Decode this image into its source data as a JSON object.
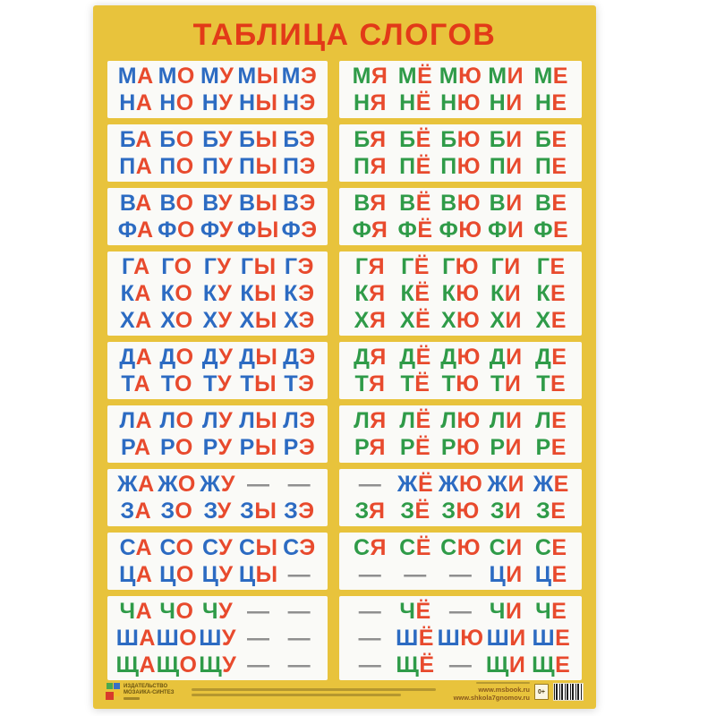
{
  "poster": {
    "title": "ТАБЛИЦА СЛОГОВ",
    "colors": {
      "background": "#E8C33C",
      "title_red": "#E23A18",
      "vowel_red": "#E84A2D",
      "hard_blue": "#2C6BC2",
      "soft_green": "#2F9B48",
      "dash_gray": "#8F8F8F",
      "card_white": "#FAFAF7"
    },
    "rows": [
      {
        "left": [
          {
            "k": "h",
            "cells": [
              "МА",
              "МО",
              "МУ",
              "МЫ",
              "МЭ"
            ]
          },
          {
            "k": "h",
            "cells": [
              "НА",
              "НО",
              "НУ",
              "НЫ",
              "НЭ"
            ]
          }
        ],
        "right": [
          {
            "k": "s",
            "cells": [
              "МЯ",
              "МЁ",
              "МЮ",
              "МИ",
              "МЕ"
            ]
          },
          {
            "k": "s",
            "cells": [
              "НЯ",
              "НЁ",
              "НЮ",
              "НИ",
              "НЕ"
            ]
          }
        ]
      },
      {
        "left": [
          {
            "k": "h",
            "cells": [
              "БА",
              "БО",
              "БУ",
              "БЫ",
              "БЭ"
            ]
          },
          {
            "k": "h",
            "cells": [
              "ПА",
              "ПО",
              "ПУ",
              "ПЫ",
              "ПЭ"
            ]
          }
        ],
        "right": [
          {
            "k": "s",
            "cells": [
              "БЯ",
              "БЁ",
              "БЮ",
              "БИ",
              "БЕ"
            ]
          },
          {
            "k": "s",
            "cells": [
              "ПЯ",
              "ПЁ",
              "ПЮ",
              "ПИ",
              "ПЕ"
            ]
          }
        ]
      },
      {
        "left": [
          {
            "k": "h",
            "cells": [
              "ВА",
              "ВО",
              "ВУ",
              "ВЫ",
              "ВЭ"
            ]
          },
          {
            "k": "h",
            "cells": [
              "ФА",
              "ФО",
              "ФУ",
              "ФЫ",
              "ФЭ"
            ]
          }
        ],
        "right": [
          {
            "k": "s",
            "cells": [
              "ВЯ",
              "ВЁ",
              "ВЮ",
              "ВИ",
              "ВЕ"
            ]
          },
          {
            "k": "s",
            "cells": [
              "ФЯ",
              "ФЁ",
              "ФЮ",
              "ФИ",
              "ФЕ"
            ]
          }
        ]
      },
      {
        "left": [
          {
            "k": "h",
            "cells": [
              "ГА",
              "ГО",
              "ГУ",
              "ГЫ",
              "ГЭ"
            ]
          },
          {
            "k": "h",
            "cells": [
              "КА",
              "КО",
              "КУ",
              "КЫ",
              "КЭ"
            ]
          },
          {
            "k": "h",
            "cells": [
              "ХА",
              "ХО",
              "ХУ",
              "ХЫ",
              "ХЭ"
            ]
          }
        ],
        "right": [
          {
            "k": "s",
            "cells": [
              "ГЯ",
              "ГЁ",
              "ГЮ",
              "ГИ",
              "ГЕ"
            ]
          },
          {
            "k": "s",
            "cells": [
              "КЯ",
              "КЁ",
              "КЮ",
              "КИ",
              "КЕ"
            ]
          },
          {
            "k": "s",
            "cells": [
              "ХЯ",
              "ХЁ",
              "ХЮ",
              "ХИ",
              "ХЕ"
            ]
          }
        ]
      },
      {
        "left": [
          {
            "k": "h",
            "cells": [
              "ДА",
              "ДО",
              "ДУ",
              "ДЫ",
              "ДЭ"
            ]
          },
          {
            "k": "h",
            "cells": [
              "ТА",
              "ТО",
              "ТУ",
              "ТЫ",
              "ТЭ"
            ]
          }
        ],
        "right": [
          {
            "k": "s",
            "cells": [
              "ДЯ",
              "ДЁ",
              "ДЮ",
              "ДИ",
              "ДЕ"
            ]
          },
          {
            "k": "s",
            "cells": [
              "ТЯ",
              "ТЁ",
              "ТЮ",
              "ТИ",
              "ТЕ"
            ]
          }
        ]
      },
      {
        "left": [
          {
            "k": "h",
            "cells": [
              "ЛА",
              "ЛО",
              "ЛУ",
              "ЛЫ",
              "ЛЭ"
            ]
          },
          {
            "k": "h",
            "cells": [
              "РА",
              "РО",
              "РУ",
              "РЫ",
              "РЭ"
            ]
          }
        ],
        "right": [
          {
            "k": "s",
            "cells": [
              "ЛЯ",
              "ЛЁ",
              "ЛЮ",
              "ЛИ",
              "ЛЕ"
            ]
          },
          {
            "k": "s",
            "cells": [
              "РЯ",
              "РЁ",
              "РЮ",
              "РИ",
              "РЕ"
            ]
          }
        ]
      },
      {
        "left": [
          {
            "k": "h",
            "cells": [
              "ЖА",
              "ЖО",
              "ЖУ",
              "—",
              "—"
            ]
          },
          {
            "k": "h",
            "cells": [
              "ЗА",
              "ЗО",
              "ЗУ",
              "ЗЫ",
              "ЗЭ"
            ]
          }
        ],
        "right": [
          {
            "k": "h",
            "cells": [
              "—",
              "ЖЁ",
              "ЖЮ",
              "ЖИ",
              "ЖЕ"
            ]
          },
          {
            "k": "s",
            "cells": [
              "ЗЯ",
              "ЗЁ",
              "ЗЮ",
              "ЗИ",
              "ЗЕ"
            ]
          }
        ]
      },
      {
        "left": [
          {
            "k": "h",
            "cells": [
              "СА",
              "СО",
              "СУ",
              "СЫ",
              "СЭ"
            ]
          },
          {
            "k": "h",
            "cells": [
              "ЦА",
              "ЦО",
              "ЦУ",
              "ЦЫ",
              "—"
            ]
          }
        ],
        "right": [
          {
            "k": "s",
            "cells": [
              "СЯ",
              "СЁ",
              "СЮ",
              "СИ",
              "СЕ"
            ]
          },
          {
            "k": "h",
            "cells": [
              "—",
              "—",
              "—",
              "ЦИ",
              "ЦЕ"
            ]
          }
        ]
      },
      {
        "left": [
          {
            "k": "s",
            "cells": [
              "ЧА",
              "ЧО",
              "ЧУ",
              "—",
              "—"
            ]
          },
          {
            "k": "h",
            "cells": [
              "ША",
              "ШО",
              "ШУ",
              "—",
              "—"
            ]
          },
          {
            "k": "s",
            "cells": [
              "ЩА",
              "ЩО",
              "ЩУ",
              "—",
              "—"
            ]
          }
        ],
        "right": [
          {
            "k": "s",
            "cells": [
              "—",
              "ЧЁ",
              "—",
              "ЧИ",
              "ЧЕ"
            ]
          },
          {
            "k": "h",
            "cells": [
              "—",
              "ШЁ",
              "ШЮ",
              "ШИ",
              "ШЕ"
            ]
          },
          {
            "k": "s",
            "cells": [
              "—",
              "ЩЁ",
              "—",
              "ЩИ",
              "ЩЕ"
            ]
          }
        ]
      }
    ],
    "footer": {
      "publisher_line1": "ИЗДАТЕЛЬСТВО",
      "publisher_line2": "МОЗАИКА-СИНТЕЗ",
      "site1": "www.msbook.ru",
      "site2": "www.shkola7gnomov.ru",
      "age_rating": "0+"
    }
  }
}
